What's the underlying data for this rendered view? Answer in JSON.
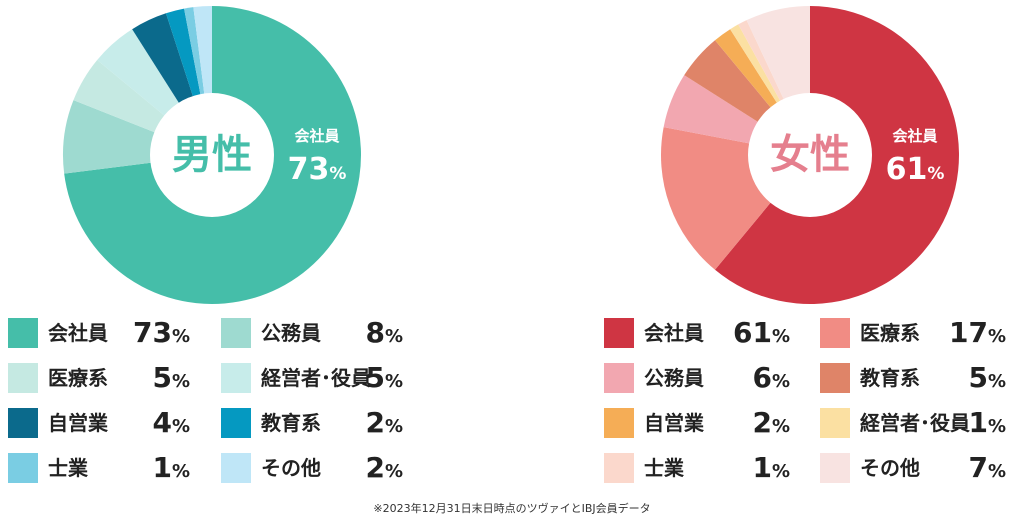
{
  "footnote": "※2023年12月31日末日時点のツヴァイとIBJ会員データ",
  "chart_data": [
    {
      "type": "pie",
      "title": "男性",
      "center_label": "男性",
      "highlight_label": "会社員",
      "highlight_value": "73",
      "unit": "%",
      "title_color": "#45bea9",
      "slices": [
        {
          "label": "会社員",
          "value": 73,
          "color": "#45bea9"
        },
        {
          "label": "公務員",
          "value": 8,
          "color": "#9edad0"
        },
        {
          "label": "医療系",
          "value": 5,
          "color": "#c5e9e2"
        },
        {
          "label": "経営者・役員",
          "value": 5,
          "color": "#c7ecea"
        },
        {
          "label": "自営業",
          "value": 4,
          "color": "#0b6a8c"
        },
        {
          "label": "教育系",
          "value": 2,
          "color": "#0599c1"
        },
        {
          "label": "士業",
          "value": 1,
          "color": "#7acde3"
        },
        {
          "label": "その他",
          "value": 2,
          "color": "#bfe6f7"
        }
      ],
      "legend": [
        {
          "label": "会社員",
          "value": "73",
          "color": "#45bea9"
        },
        {
          "label": "公務員",
          "value": "8",
          "color": "#9edad0"
        },
        {
          "label": "医療系",
          "value": "5",
          "color": "#c5e9e2"
        },
        {
          "label": "経営者･役員",
          "value": "5",
          "color": "#c7ecea"
        },
        {
          "label": "自営業",
          "value": "4",
          "color": "#0b6a8c"
        },
        {
          "label": "教育系",
          "value": "2",
          "color": "#0599c1"
        },
        {
          "label": "士業",
          "value": "1",
          "color": "#7acde3"
        },
        {
          "label": "その他",
          "value": "2",
          "color": "#bfe6f7"
        }
      ]
    },
    {
      "type": "pie",
      "title": "女性",
      "center_label": "女性",
      "highlight_label": "会社員",
      "highlight_value": "61",
      "unit": "%",
      "title_color": "#e57f8e",
      "slices": [
        {
          "label": "会社員",
          "value": 61,
          "color": "#cf3543"
        },
        {
          "label": "医療系",
          "value": 17,
          "color": "#f18c84"
        },
        {
          "label": "公務員",
          "value": 6,
          "color": "#f2a7b0"
        },
        {
          "label": "教育系",
          "value": 5,
          "color": "#df8468"
        },
        {
          "label": "自営業",
          "value": 2,
          "color": "#f5ad56"
        },
        {
          "label": "経営者・役員",
          "value": 1,
          "color": "#fbe0a2"
        },
        {
          "label": "士業",
          "value": 1,
          "color": "#fbd8cc"
        },
        {
          "label": "その他",
          "value": 7,
          "color": "#f8e3e1"
        }
      ],
      "legend": [
        {
          "label": "会社員",
          "value": "61",
          "color": "#cf3543"
        },
        {
          "label": "医療系",
          "value": "17",
          "color": "#f18c84"
        },
        {
          "label": "公務員",
          "value": "6",
          "color": "#f2a7b0"
        },
        {
          "label": "教育系",
          "value": "5",
          "color": "#df8468"
        },
        {
          "label": "自営業",
          "value": "2",
          "color": "#f5ad56"
        },
        {
          "label": "経営者･役員",
          "value": "1",
          "color": "#fbe0a2"
        },
        {
          "label": "士業",
          "value": "1",
          "color": "#fbd8cc"
        },
        {
          "label": "その他",
          "value": "7",
          "color": "#f8e3e1"
        }
      ]
    }
  ]
}
